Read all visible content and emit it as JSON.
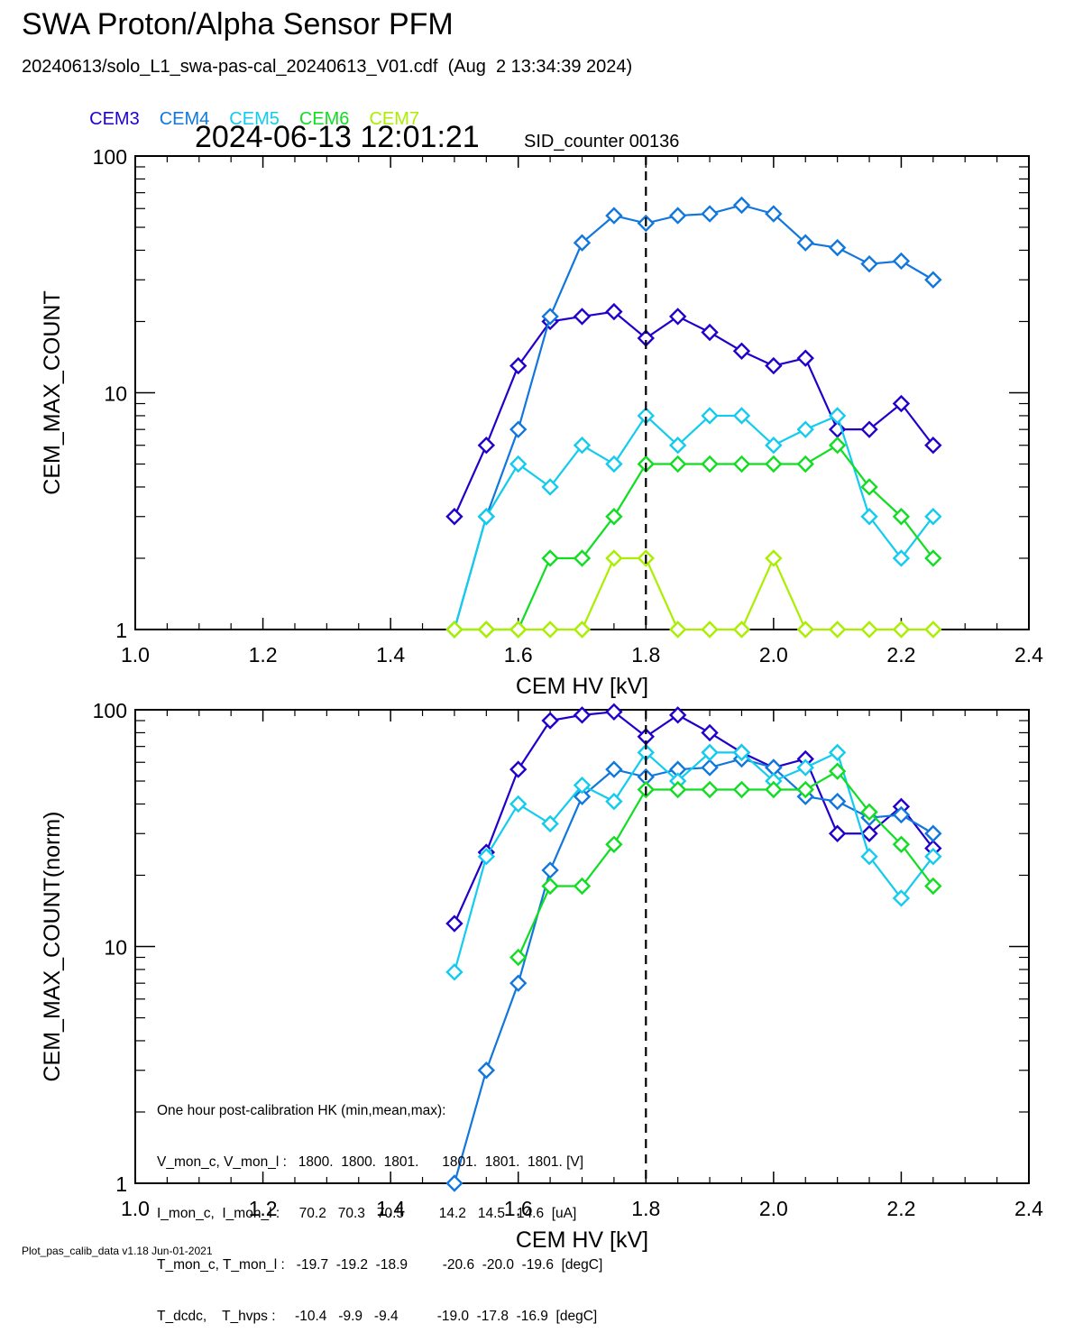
{
  "page": {
    "title": "SWA Proton/Alpha Sensor PFM",
    "subtitle": "20240613/solo_L1_swa-pas-cal_20240613_V01.cdf  (Aug  2 13:34:39 2024)",
    "timestamp": "2024-06-13 12:01:21",
    "sid_counter": "SID_counter 00136",
    "footer": "Plot_pas_calib_data v1.18 Jun-01-2021",
    "hk_lines": [
      "One hour post-calibration HK (min,mean,max):",
      "V_mon_c, V_mon_l :   1800.  1800.  1801.      1801.  1801.  1801. [V]",
      "I_mon_c,  I_mon_l :     70.2   70.3   70.5         14.2   14.5   14.6  [uA]",
      "T_mon_c, T_mon_l :   -19.7  -19.2  -18.9         -20.6  -20.0  -19.6  [degC]",
      "T_dcdc,    T_hvps :     -10.4   -9.9   -9.4          -19.0  -17.8  -16.9  [degC]"
    ]
  },
  "legend": [
    {
      "name": "CEM3",
      "color": "#2200cc"
    },
    {
      "name": "CEM4",
      "color": "#1177dd"
    },
    {
      "name": "CEM5",
      "color": "#11ccee"
    },
    {
      "name": "CEM6",
      "color": "#11dd22"
    },
    {
      "name": "CEM7",
      "color": "#aaee00"
    }
  ],
  "chart_data": [
    {
      "type": "line",
      "ylabel": "CEM_MAX_COUNT",
      "xlabel": "CEM HV [kV]",
      "xlim": [
        1.0,
        2.4
      ],
      "ylim": [
        1,
        100
      ],
      "yscale": "log",
      "xticks": [
        1.0,
        1.2,
        1.4,
        1.6,
        1.8,
        2.0,
        2.2,
        2.4
      ],
      "xtick_labels": [
        "1.0",
        "1.2",
        "1.4",
        "1.6",
        "1.8",
        "2.0",
        "2.2",
        "2.4"
      ],
      "yticks": [
        1,
        10,
        100
      ],
      "ytick_labels": [
        "1",
        "10",
        "100"
      ],
      "vline_x": 1.8,
      "x": [
        1.5,
        1.55,
        1.6,
        1.65,
        1.7,
        1.75,
        1.8,
        1.85,
        1.9,
        1.95,
        2.0,
        2.05,
        2.1,
        2.15,
        2.2,
        2.25
      ],
      "series": [
        {
          "name": "CEM3",
          "color": "#2200cc",
          "values": [
            3,
            6,
            13,
            20,
            21,
            22,
            17,
            21,
            18,
            15,
            13,
            14,
            7,
            7,
            9,
            6
          ]
        },
        {
          "name": "CEM4",
          "color": "#1177dd",
          "values": [
            1,
            3,
            7,
            21,
            43,
            56,
            52,
            56,
            57,
            62,
            57,
            43,
            41,
            35,
            36,
            30
          ]
        },
        {
          "name": "CEM5",
          "color": "#11ccee",
          "values": [
            1,
            3,
            5,
            4,
            6,
            5,
            8,
            6,
            8,
            8,
            6,
            7,
            8,
            3,
            2,
            3
          ]
        },
        {
          "name": "CEM6",
          "color": "#11dd22",
          "values": [
            1,
            1,
            1,
            2,
            2,
            3,
            5,
            5,
            5,
            5,
            5,
            5,
            6,
            4,
            3,
            2
          ]
        },
        {
          "name": "CEM7",
          "color": "#aaee00",
          "values": [
            1,
            1,
            1,
            1,
            1,
            2,
            2,
            1,
            1,
            1,
            2,
            1,
            1,
            1,
            1,
            1
          ]
        }
      ]
    },
    {
      "type": "line",
      "ylabel": "CEM_MAX_COUNT(norm)",
      "xlabel": "CEM HV [kV]",
      "xlim": [
        1.0,
        2.4
      ],
      "ylim": [
        1,
        100
      ],
      "yscale": "log",
      "xticks": [
        1.0,
        1.2,
        1.4,
        1.6,
        1.8,
        2.0,
        2.2,
        2.4
      ],
      "xtick_labels": [
        "1.0",
        "1.2",
        "1.4",
        "1.6",
        "1.8",
        "2.0",
        "2.2",
        "2.4"
      ],
      "yticks": [
        1,
        10,
        100
      ],
      "ytick_labels": [
        "1",
        "10",
        "100"
      ],
      "vline_x": 1.8,
      "x": [
        1.5,
        1.55,
        1.6,
        1.65,
        1.7,
        1.75,
        1.8,
        1.85,
        1.9,
        1.95,
        2.0,
        2.05,
        2.1,
        2.15,
        2.2,
        2.25
      ],
      "series": [
        {
          "name": "CEM3",
          "color": "#2200cc",
          "values": [
            12.5,
            25,
            56,
            90,
            95,
            98,
            77,
            95,
            80,
            66,
            57,
            62,
            30,
            30,
            39,
            26
          ]
        },
        {
          "name": "CEM4",
          "color": "#1177dd",
          "values": [
            1,
            3,
            7,
            21,
            43,
            56,
            52,
            56,
            57,
            62,
            57,
            43,
            41,
            35,
            36,
            30
          ]
        },
        {
          "name": "CEM5",
          "color": "#11ccee",
          "values": [
            7.8,
            24,
            40,
            33,
            48,
            41,
            66,
            50,
            66,
            66,
            50,
            57,
            66,
            24,
            16,
            24
          ]
        },
        {
          "name": "CEM6",
          "color": "#11dd22",
          "values": [
            null,
            null,
            9,
            18,
            18,
            27,
            46,
            46,
            46,
            46,
            46,
            46,
            55,
            37,
            27,
            18
          ]
        }
      ]
    }
  ]
}
